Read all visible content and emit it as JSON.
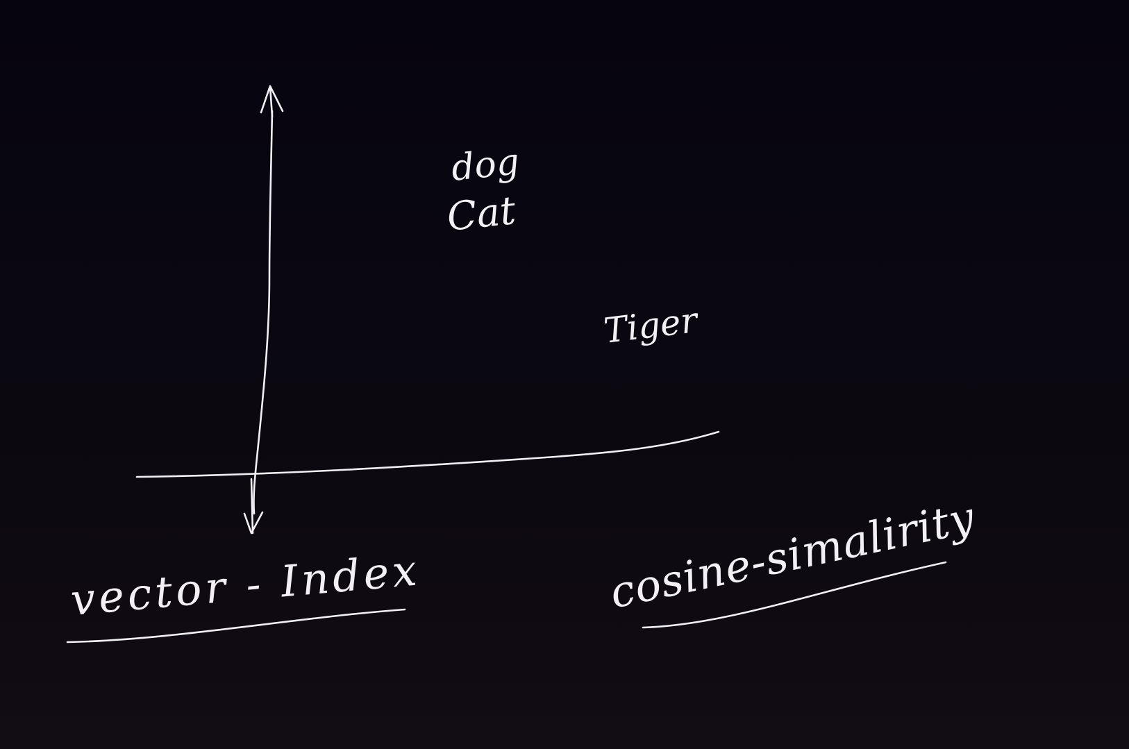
{
  "labels": {
    "point_dog": "dog",
    "point_cat": "Cat",
    "point_tiger": "Tiger",
    "note_vector_index": "vector - Index",
    "note_cosine": "cosine-simalirity"
  },
  "colors": {
    "background": "#08060d",
    "ink": "#f2f0f4"
  }
}
